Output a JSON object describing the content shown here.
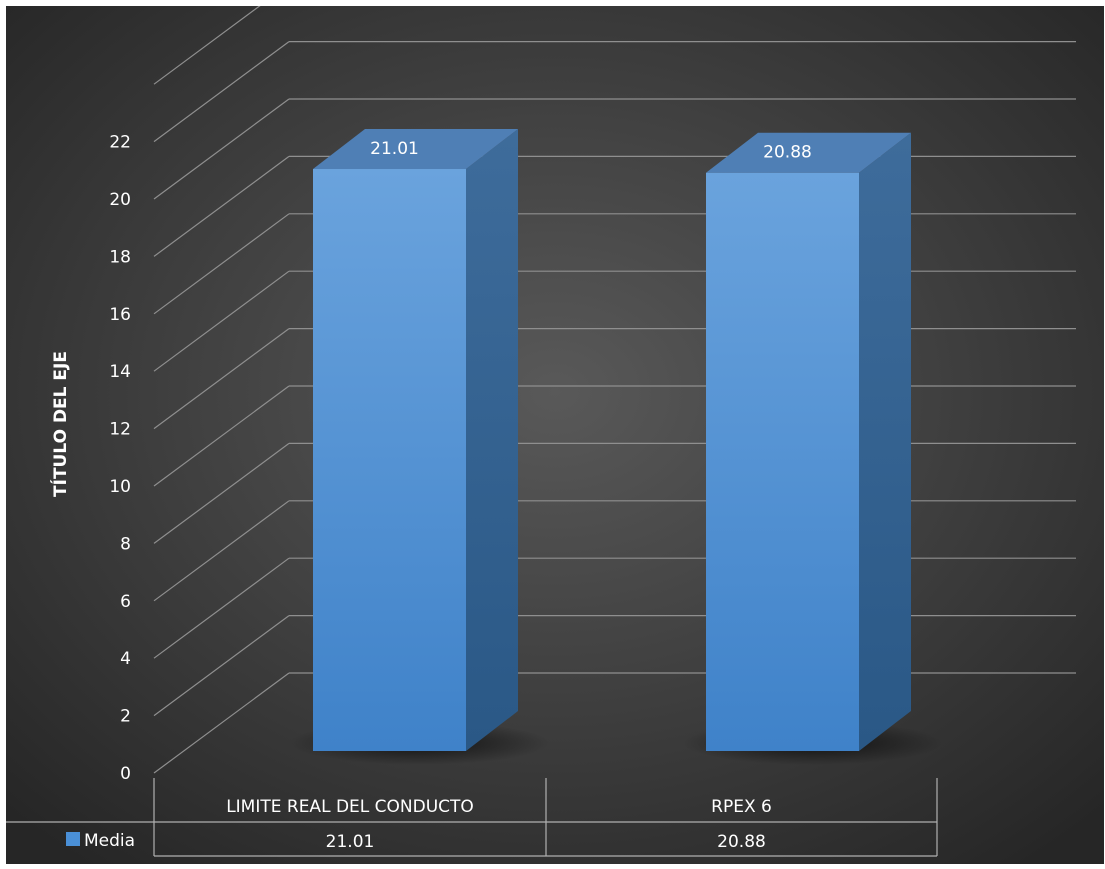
{
  "chart_data": {
    "type": "bar",
    "categories": [
      "LIMITE REAL DEL CONDUCTO",
      "RPEX 6"
    ],
    "series": [
      {
        "name": "Media",
        "values": [
          21.01,
          20.88
        ]
      }
    ],
    "data_labels": [
      "21.01",
      "20.88"
    ],
    "ylabel": "TÍTULO DEL EJE",
    "yticks": [
      "0",
      "2",
      "4",
      "6",
      "8",
      "10",
      "12",
      "14",
      "16",
      "18",
      "20",
      "22"
    ],
    "ylim": [
      0,
      24
    ],
    "grid": true,
    "legend": "data-table",
    "colors": {
      "bar_front": "#4a8fd6",
      "bar_side": "#2c5a86",
      "bar_top": "#4f7fb5",
      "background": "#3a3a3a"
    }
  }
}
